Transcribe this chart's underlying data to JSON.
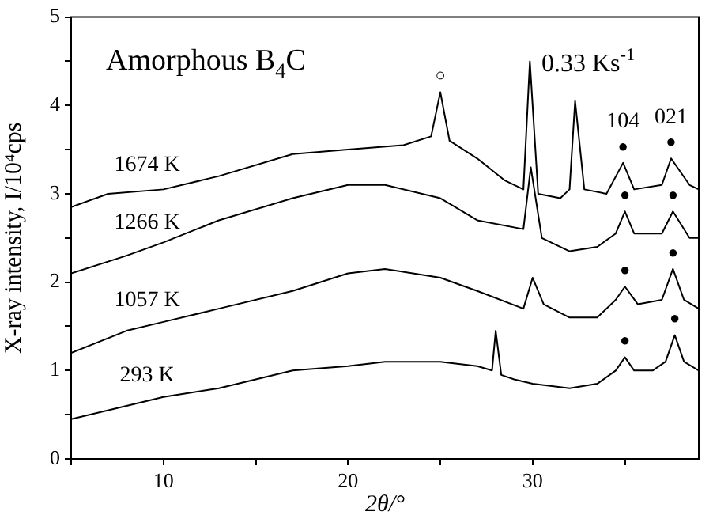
{
  "chart_data": {
    "type": "line",
    "xlabel": "2θ/°",
    "ylabel": "X-ray intensity, I/10⁴cps",
    "xlim": [
      5,
      39
    ],
    "xticks": [
      {
        "value": 5,
        "label": null
      },
      10,
      {
        "value": 15,
        "label": null
      },
      20,
      {
        "value": 25,
        "label": null
      },
      30,
      {
        "value": 35,
        "label": null
      }
    ],
    "ylim": [
      0,
      5
    ],
    "yticks": [
      0,
      {
        "value": 0.5,
        "label": null
      },
      1,
      {
        "value": 1.5,
        "label": null
      },
      2,
      {
        "value": 2.5,
        "label": null
      },
      3,
      {
        "value": 3.5,
        "label": null
      },
      4,
      {
        "value": 4.5,
        "label": null
      },
      5
    ],
    "grid": false,
    "legend": false,
    "marker": "none",
    "line_style": "solid",
    "annotations": [
      "Amorphous B$_{4}$C",
      "0.33 Ks$^{-1}$",
      {
        "text": "○",
        "x": 25,
        "y": 4.15
      },
      {
        "text": "104",
        "x": 34.9,
        "y": 3.35
      },
      {
        "text": "021",
        "x": 37.5,
        "y": 3.4
      },
      {
        "text": "●",
        "x": 34.9,
        "y": 3.35
      },
      {
        "text": "●",
        "x": 37.5,
        "y": 3.4
      },
      {
        "text": "●",
        "x": 35,
        "y": 2.8
      },
      {
        "text": "●",
        "x": 37.6,
        "y": 2.8
      },
      {
        "text": "●",
        "x": 35,
        "y": 1.95
      },
      {
        "text": "●",
        "x": 37.6,
        "y": 2.15
      },
      {
        "text": "●",
        "x": 35,
        "y": 1.15
      },
      {
        "text": "●",
        "x": 37.7,
        "y": 1.4
      }
    ],
    "series": [
      {
        "name": "1674 K",
        "color": "#000000",
        "x": [
          5,
          7,
          10,
          13,
          17,
          20,
          23,
          24.5,
          25,
          25.5,
          27,
          28.5,
          29.5,
          29.85,
          30.3,
          31.5,
          32,
          32.3,
          32.8,
          34,
          34.9,
          35.5,
          37,
          37.5,
          38.5,
          39
        ],
        "values": [
          2.85,
          3.0,
          3.05,
          3.2,
          3.45,
          3.5,
          3.55,
          3.65,
          4.15,
          3.6,
          3.4,
          3.15,
          3.05,
          4.5,
          3.0,
          2.95,
          3.05,
          4.05,
          3.05,
          3.0,
          3.35,
          3.05,
          3.1,
          3.4,
          3.1,
          3.05
        ]
      },
      {
        "name": "1266 K",
        "color": "#000000",
        "x": [
          5,
          8,
          10,
          13,
          17,
          20,
          22,
          25,
          27,
          29.5,
          29.9,
          30.5,
          32,
          33.5,
          34.5,
          35,
          35.5,
          37,
          37.6,
          38.5,
          39
        ],
        "values": [
          2.1,
          2.3,
          2.45,
          2.7,
          2.95,
          3.1,
          3.1,
          2.95,
          2.7,
          2.6,
          3.3,
          2.5,
          2.35,
          2.4,
          2.55,
          2.8,
          2.55,
          2.55,
          2.8,
          2.5,
          2.5
        ]
      },
      {
        "name": "1057 K",
        "color": "#000000",
        "x": [
          5,
          8,
          10,
          13,
          17,
          20,
          22,
          25,
          27,
          29.5,
          30,
          30.6,
          32,
          33.5,
          34.5,
          35,
          35.7,
          37,
          37.6,
          38.2,
          39
        ],
        "values": [
          1.2,
          1.45,
          1.55,
          1.7,
          1.9,
          2.1,
          2.15,
          2.05,
          1.9,
          1.7,
          2.05,
          1.75,
          1.6,
          1.6,
          1.8,
          1.95,
          1.75,
          1.8,
          2.15,
          1.8,
          1.7
        ]
      },
      {
        "name": "293 K",
        "color": "#000000",
        "x": [
          5,
          8,
          10,
          13,
          17,
          20,
          22,
          25,
          27,
          27.8,
          28,
          28.3,
          29,
          30,
          32,
          33.5,
          34.5,
          35,
          35.5,
          36.5,
          37.2,
          37.7,
          38.2,
          39
        ],
        "values": [
          0.45,
          0.6,
          0.7,
          0.8,
          1.0,
          1.05,
          1.1,
          1.1,
          1.05,
          1.0,
          1.45,
          0.95,
          0.9,
          0.85,
          0.8,
          0.85,
          1.0,
          1.15,
          1.0,
          1.0,
          1.1,
          1.4,
          1.1,
          1.0
        ]
      }
    ]
  }
}
